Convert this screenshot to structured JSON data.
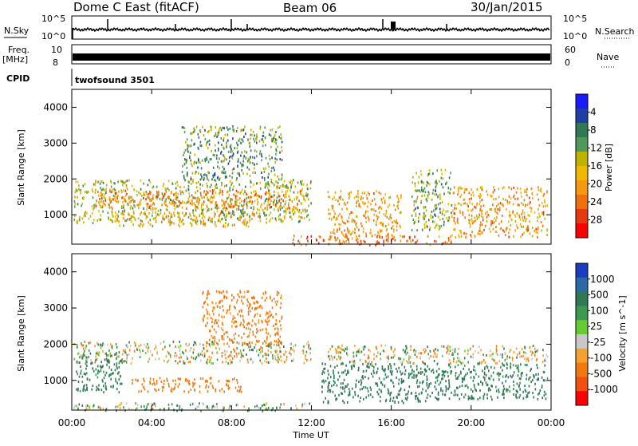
{
  "header": {
    "station": "Dome C East (fitACF)",
    "beam": "Beam 06",
    "date": "30/Jan/2015"
  },
  "top_panels": {
    "nsky_label": "N.Sky",
    "nsky_top_tick": "10^5",
    "nsky_bottom_tick": "10^0",
    "nsearch_label": "N.Search",
    "freq_label": "Freq.",
    "freq_unit": "[MHz]",
    "freq_top_tick": "10",
    "freq_bottom_tick": "8",
    "nave_top_tick": "60",
    "nave_bottom_tick": "0",
    "nave_label": "Nave",
    "cpid_label": "CPID",
    "cpid_value": "twofsound 3501"
  },
  "chart_data": [
    {
      "type": "heatmap",
      "title": "",
      "xlabel": "",
      "ylabel": "Slant Range [km]",
      "xlim": [
        0,
        24
      ],
      "ylim": [
        180,
        4500
      ],
      "x_tick_labels": [
        "00:00",
        "04:00",
        "08:00",
        "12:00",
        "16:00",
        "20:00",
        "00:00"
      ],
      "y_ticks": [
        1000,
        2000,
        3000,
        4000
      ],
      "colorbar": {
        "label": "Power [dB]",
        "range": [
          0,
          32
        ],
        "tick_labels": [
          "4",
          "8",
          "12",
          "16",
          "20",
          "24",
          "28"
        ],
        "colors": [
          "#1a1aff",
          "#1f3fa8",
          "#2f7a55",
          "#4f9a5a",
          "#bdb400",
          "#f0b800",
          "#f59a10",
          "#f07010",
          "#e53a10",
          "#ff0000"
        ]
      },
      "features": [
        {
          "time_start": 0.1,
          "time_end": 12.0,
          "range_start": 800,
          "range_end": 2000,
          "power": 14
        },
        {
          "time_start": 1.0,
          "time_end": 11.5,
          "range_start": 1200,
          "range_end": 1700,
          "power": 22
        },
        {
          "time_start": 2.0,
          "time_end": 9.5,
          "range_start": 700,
          "range_end": 1100,
          "power": 18
        },
        {
          "time_start": 5.5,
          "time_end": 10.5,
          "range_start": 2000,
          "range_end": 3500,
          "power": 10
        },
        {
          "time_start": 11.0,
          "time_end": 19.0,
          "range_start": 180,
          "range_end": 450,
          "power": 24
        },
        {
          "time_start": 12.8,
          "time_end": 16.5,
          "range_start": 400,
          "range_end": 1700,
          "power": 20
        },
        {
          "time_start": 17.0,
          "time_end": 19.0,
          "range_start": 600,
          "range_end": 2300,
          "power": 12
        },
        {
          "time_start": 19.0,
          "time_end": 23.8,
          "range_start": 400,
          "range_end": 1800,
          "power": 21
        }
      ]
    },
    {
      "type": "heatmap",
      "title": "",
      "xlabel": "Time UT",
      "ylabel": "Slant Range [km]",
      "xlim": [
        0,
        24
      ],
      "ylim": [
        180,
        4500
      ],
      "x_tick_labels": [
        "00:00",
        "04:00",
        "08:00",
        "12:00",
        "16:00",
        "20:00",
        "00:00"
      ],
      "y_ticks": [
        1000,
        2000,
        3000,
        4000
      ],
      "colorbar": {
        "label": "Velocity [m s^-1]",
        "tick_labels": [
          "1000",
          "500",
          "100",
          "25",
          "-25",
          "-100",
          "-500",
          "-1000"
        ],
        "colors": [
          "#1a3cc0",
          "#2a6aa8",
          "#2f7a55",
          "#3c9a50",
          "#66cc33",
          "#c8c8c8",
          "#f5a030",
          "#f07a10",
          "#f05010",
          "#ff0000"
        ]
      },
      "features": [
        {
          "time_start": 0.1,
          "time_end": 12.0,
          "range_start": 1500,
          "range_end": 2100,
          "velocity": 0
        },
        {
          "time_start": 0.2,
          "time_end": 2.5,
          "range_start": 700,
          "range_end": 1800,
          "velocity": 200
        },
        {
          "time_start": 3.0,
          "time_end": 8.5,
          "range_start": 700,
          "range_end": 1100,
          "velocity": -300
        },
        {
          "time_start": 6.5,
          "time_end": 10.5,
          "range_start": 2000,
          "range_end": 3500,
          "velocity": -200
        },
        {
          "time_start": 0.0,
          "time_end": 12.0,
          "range_start": 180,
          "range_end": 400,
          "velocity": 60
        },
        {
          "time_start": 12.8,
          "time_end": 23.8,
          "range_start": 1500,
          "range_end": 2000,
          "velocity": 0
        },
        {
          "time_start": 12.5,
          "time_end": 19.0,
          "range_start": 400,
          "range_end": 1500,
          "velocity": 300
        },
        {
          "time_start": 19.0,
          "time_end": 23.8,
          "range_start": 500,
          "range_end": 1500,
          "velocity": 200
        }
      ]
    }
  ]
}
